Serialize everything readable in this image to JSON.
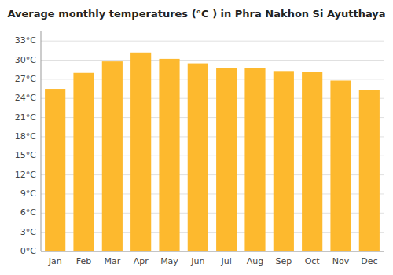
{
  "chart_data": {
    "type": "bar",
    "title": "Average monthly temperatures (°C ) in Phra Nakhon Si Ayutthaya",
    "categories": [
      "Jan",
      "Feb",
      "Mar",
      "Apr",
      "May",
      "Jun",
      "Jul",
      "Aug",
      "Sep",
      "Oct",
      "Nov",
      "Dec"
    ],
    "values": [
      25.5,
      28.0,
      29.8,
      31.2,
      30.2,
      29.5,
      28.8,
      28.8,
      28.3,
      28.2,
      26.8,
      25.3
    ],
    "color": "#FDB92E",
    "ylim": [
      0,
      34.5
    ],
    "yticks": [
      {
        "value": 0,
        "label": "0°C"
      },
      {
        "value": 3,
        "label": "3°C"
      },
      {
        "value": 6,
        "label": "6°C"
      },
      {
        "value": 9,
        "label": "9°C"
      },
      {
        "value": 12,
        "label": "12°C"
      },
      {
        "value": 15,
        "label": "15°C"
      },
      {
        "value": 18,
        "label": "18°C"
      },
      {
        "value": 21,
        "label": "21°C"
      },
      {
        "value": 24,
        "label": "24°C"
      },
      {
        "value": 27,
        "label": "27°C"
      },
      {
        "value": 30,
        "label": "30°C"
      },
      {
        "value": 33,
        "label": "33°C"
      }
    ],
    "grid": true
  }
}
